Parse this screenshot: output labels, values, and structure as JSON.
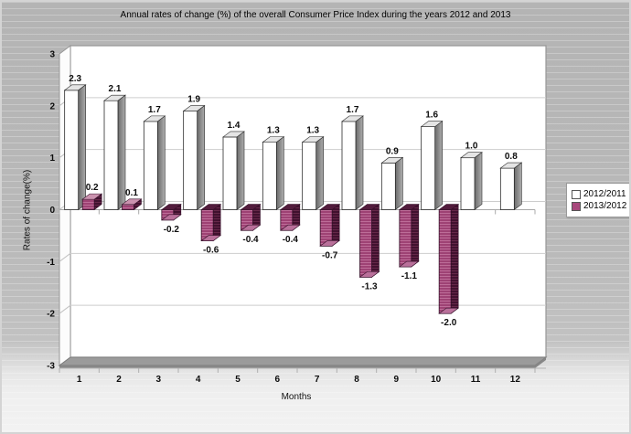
{
  "chart_data": {
    "type": "bar",
    "projection": "3d",
    "title": "Annual rates of change (%) of the overall Consumer Price Index during the years 2012 and 2013",
    "xlabel": "Months",
    "ylabel": "Rates of change(%)",
    "ylim": [
      -3,
      3
    ],
    "ytick_step": 1,
    "grid": true,
    "legend_position": "right",
    "categories": [
      "1",
      "2",
      "3",
      "4",
      "5",
      "6",
      "7",
      "8",
      "9",
      "10",
      "11",
      "12"
    ],
    "series": [
      {
        "name": "2012/2011",
        "color": "#ffffff",
        "values": [
          2.3,
          2.1,
          1.7,
          1.9,
          1.4,
          1.3,
          1.3,
          1.7,
          0.9,
          1.6,
          1.0,
          0.8
        ]
      },
      {
        "name": "2013/2012",
        "color": "#a8487c",
        "values": [
          0.2,
          0.1,
          -0.2,
          -0.6,
          -0.4,
          -0.4,
          -0.7,
          -1.3,
          -1.1,
          -2.0,
          null,
          null
        ]
      }
    ]
  }
}
